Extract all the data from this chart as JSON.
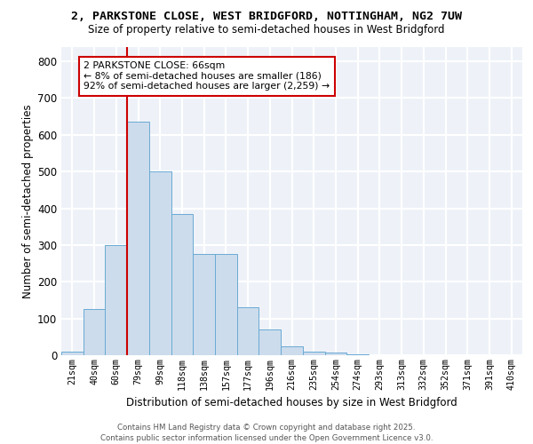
{
  "title_line1": "2, PARKSTONE CLOSE, WEST BRIDGFORD, NOTTINGHAM, NG2 7UW",
  "title_line2": "Size of property relative to semi-detached houses in West Bridgford",
  "xlabel": "Distribution of semi-detached houses by size in West Bridgford",
  "ylabel": "Number of semi-detached properties",
  "categories": [
    "21sqm",
    "40sqm",
    "60sqm",
    "79sqm",
    "99sqm",
    "118sqm",
    "138sqm",
    "157sqm",
    "177sqm",
    "196sqm",
    "216sqm",
    "235sqm",
    "254sqm",
    "274sqm",
    "293sqm",
    "313sqm",
    "332sqm",
    "352sqm",
    "371sqm",
    "391sqm",
    "410sqm"
  ],
  "values": [
    10,
    125,
    300,
    635,
    500,
    385,
    275,
    275,
    130,
    70,
    25,
    10,
    7,
    2,
    0,
    0,
    0,
    0,
    0,
    0,
    0
  ],
  "bar_color": "#ccdcec",
  "bar_edge_color": "#6aaad4",
  "red_line_index": 2.5,
  "annotation_title": "2 PARKSTONE CLOSE: 66sqm",
  "annotation_line1": "← 8% of semi-detached houses are smaller (186)",
  "annotation_line2": "92% of semi-detached houses are larger (2,259) →",
  "annotation_box_color": "#ffffff",
  "annotation_border_color": "#cc0000",
  "vline_color": "#cc0000",
  "ylim": [
    0,
    840
  ],
  "yticks": [
    0,
    100,
    200,
    300,
    400,
    500,
    600,
    700,
    800
  ],
  "footer_line1": "Contains HM Land Registry data © Crown copyright and database right 2025.",
  "footer_line2": "Contains public sector information licensed under the Open Government Licence v3.0.",
  "bg_color": "#eef2f8",
  "grid_color": "#ffffff",
  "title_fontsize": 9.5,
  "subtitle_fontsize": 8.5
}
